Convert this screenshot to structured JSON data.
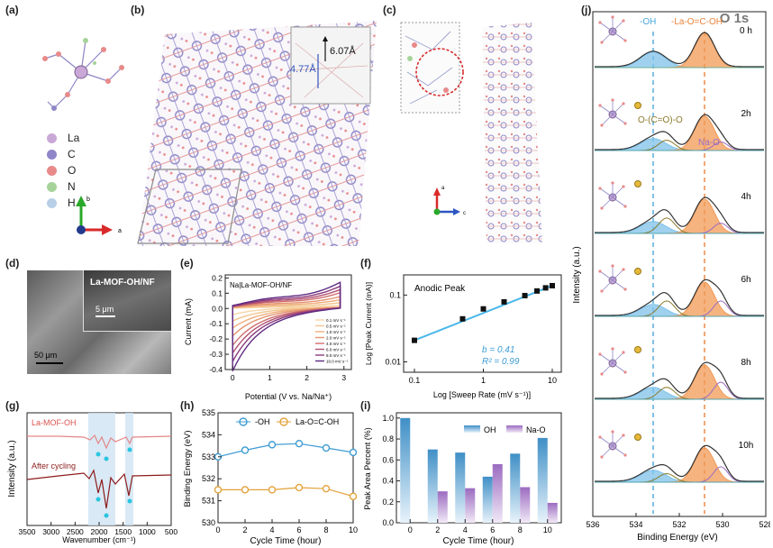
{
  "panels": {
    "a": "(a)",
    "b": "(b)",
    "c": "(c)",
    "d": "(d)",
    "e": "(e)",
    "f": "(f)",
    "g": "(g)",
    "h": "(h)",
    "i": "(i)",
    "j": "(j)"
  },
  "panel_a": {
    "legend": [
      {
        "label": "La",
        "color": "#c9a8d8"
      },
      {
        "label": "C",
        "color": "#8f86c9"
      },
      {
        "label": "O",
        "color": "#e88a8a"
      },
      {
        "label": "N",
        "color": "#a6d39a"
      },
      {
        "label": "H",
        "color": "#b8cfe8"
      }
    ],
    "axes": {
      "b": "b",
      "a": "a"
    }
  },
  "panel_b": {
    "inset_a": "6.07Å",
    "inset_b": "4.77Å"
  },
  "panel_c": {
    "axes": {
      "a": "a",
      "c": "c"
    }
  },
  "panel_d": {
    "label": "La-MOF-OH/NF",
    "scale_small": "5 μm",
    "scale_large": "50 μm"
  },
  "chart_e": {
    "type": "line",
    "title": "Na|La-MOF-OH/NF",
    "xlabel": "Potential (V vs. Na/Na⁺)",
    "ylabel": "Current (mA)",
    "xlim": [
      -0.2,
      3.2
    ],
    "ylim": [
      -0.4,
      0.22
    ],
    "xticks": [
      "0",
      "1",
      "2",
      "3"
    ],
    "yticks": [
      "0.2",
      "0.1",
      "0.0",
      "-0.1",
      "-0.2",
      "-0.3",
      "-0.4"
    ],
    "series": [
      {
        "name": "0.1 mV s⁻¹",
        "scale": 0.12,
        "color": "#f7d5a8"
      },
      {
        "name": "0.5 mV s⁻¹",
        "scale": 0.22,
        "color": "#f3c48f"
      },
      {
        "name": "1.0 mV s⁻¹",
        "scale": 0.33,
        "color": "#eeae7c"
      },
      {
        "name": "2.0 mV s⁻¹",
        "scale": 0.45,
        "color": "#e3946f"
      },
      {
        "name": "4.0 mV s⁻¹",
        "scale": 0.6,
        "color": "#cf6f6e"
      },
      {
        "name": "6.0 mV s⁻¹",
        "scale": 0.72,
        "color": "#b25072"
      },
      {
        "name": "8.0 mV s⁻¹",
        "scale": 0.85,
        "color": "#8a3a7c"
      },
      {
        "name": "10.0 mV s⁻¹",
        "scale": 1.0,
        "color": "#5e2a82"
      }
    ]
  },
  "chart_f": {
    "type": "scatter",
    "title": "Anodic Peak",
    "xlabel": "Log [Sweep Rate (mV s⁻¹)]",
    "ylabel": "Log [Peak Current (mA)]",
    "x": [
      0.1,
      0.5,
      1,
      2,
      4,
      6,
      8,
      10
    ],
    "y": [
      0.021,
      0.044,
      0.062,
      0.079,
      0.098,
      0.115,
      0.128,
      0.138
    ],
    "xticks": [
      "0.1",
      "1",
      "10"
    ],
    "yticks": [
      "0.1",
      "0.01"
    ],
    "b_label": "b = 0.41",
    "r2_label": "R² = 0.99"
  },
  "chart_g": {
    "type": "line",
    "xlabel": "Wavenumber (cm⁻¹)",
    "ylabel": "Intensity (a.u.)",
    "xticks": [
      "3500",
      "3000",
      "2500",
      "2000",
      "1500",
      "1000",
      "500"
    ],
    "series_labels": [
      "La-MOF-OH",
      "After cycling"
    ]
  },
  "chart_h": {
    "type": "line",
    "xlabel": "Cycle Time (hour)",
    "ylabel": "Binding Energy (eV)",
    "x": [
      0,
      2,
      4,
      6,
      8,
      10
    ],
    "ylim": [
      530,
      535
    ],
    "xticks": [
      "0",
      "2",
      "4",
      "6",
      "8",
      "10"
    ],
    "yticks": [
      "535",
      "534",
      "533",
      "532",
      "531",
      "530"
    ],
    "series": [
      {
        "name": "-OH",
        "values": [
          533.0,
          533.3,
          533.55,
          533.6,
          533.4,
          533.2
        ],
        "color": "#3d9bd2"
      },
      {
        "name": "La-O=C-OH",
        "values": [
          531.5,
          531.5,
          531.5,
          531.6,
          531.55,
          531.2
        ],
        "color": "#e3a23a"
      }
    ]
  },
  "chart_i": {
    "type": "bar",
    "xlabel": "Cycle Time (hour)",
    "ylabel": "Peak Area Percent (%)",
    "categories": [
      "0",
      "2",
      "4",
      "6",
      "8",
      "10"
    ],
    "ylim": [
      0,
      1.05
    ],
    "xticks": [
      "0",
      "2",
      "4",
      "6",
      "8",
      "10"
    ],
    "yticks": [
      "1.0",
      "0.8",
      "0.6",
      "0.4",
      "0.2",
      "0.0"
    ],
    "series": [
      {
        "name": "OH",
        "values": [
          1.0,
          0.7,
          0.67,
          0.44,
          0.66,
          0.81
        ],
        "color": "#3f8fc6"
      },
      {
        "name": "Na-O",
        "values": [
          0.0,
          0.3,
          0.33,
          0.56,
          0.34,
          0.19
        ],
        "color": "#9b6bc0"
      }
    ]
  },
  "chart_j": {
    "type": "line",
    "title": "O 1s",
    "xlabel": "Binding Energy (eV)",
    "ylabel": "Intensity (a.u.)",
    "xticks": [
      "536",
      "534",
      "532",
      "530",
      "528"
    ],
    "labels": {
      "oh": "-OH",
      "laoc": "-La-O=C-OH",
      "ocoo": "O-(C=O)-O",
      "nao": "Na-O"
    },
    "times": [
      "0 h",
      "2h",
      "4h",
      "6h",
      "8h",
      "10h"
    ]
  }
}
